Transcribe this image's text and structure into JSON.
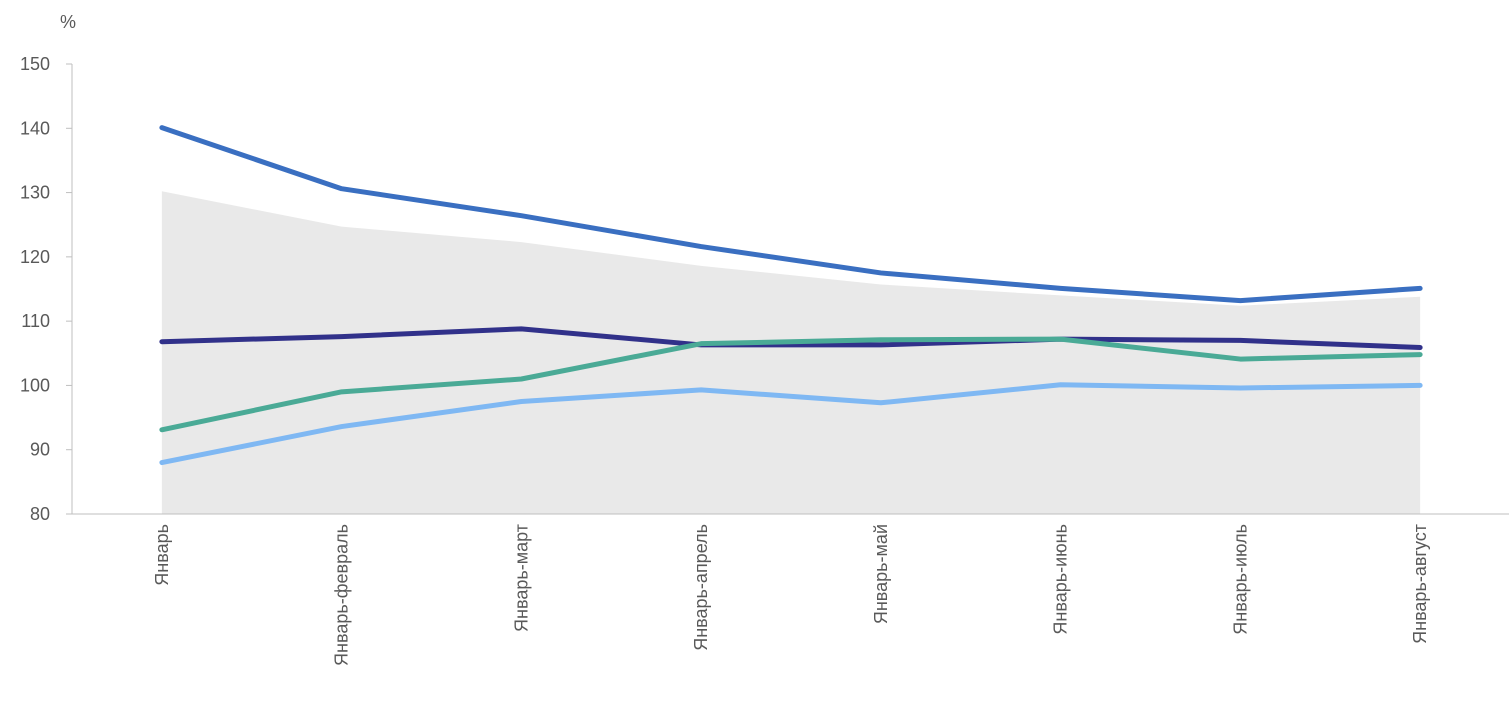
{
  "chart_data": {
    "type": "line",
    "ylabel": "%",
    "ylim": [
      80,
      150
    ],
    "yticks": [
      "80",
      "90",
      "100",
      "110",
      "120",
      "130",
      "140",
      "150"
    ],
    "categories": [
      "Январь",
      "Январь-февраль",
      "Январь-март",
      "Январь-апрель",
      "Январь-май",
      "Январь-июнь",
      "Январь-июль",
      "Январь-август"
    ],
    "area": {
      "color": "#e9e9e9",
      "values": [
        130.2,
        124.7,
        122.3,
        118.6,
        115.7,
        114.0,
        112.4,
        113.8
      ]
    },
    "series": [
      {
        "color": "#3a6fc1",
        "values": [
          140.1,
          130.6,
          126.4,
          121.6,
          117.5,
          115.1,
          113.2,
          115.1
        ]
      },
      {
        "color": "#31318a",
        "values": [
          106.8,
          107.6,
          108.8,
          106.3,
          106.3,
          107.2,
          107.0,
          105.9
        ]
      },
      {
        "color": "#4aaa96",
        "values": [
          93.1,
          99.0,
          101.0,
          106.5,
          107.1,
          107.2,
          104.1,
          104.8
        ]
      },
      {
        "color": "#7fb8f3",
        "values": [
          88.0,
          93.6,
          97.5,
          99.3,
          97.3,
          100.1,
          99.6,
          100.0
        ]
      }
    ],
    "grid": false,
    "legend": "none"
  }
}
